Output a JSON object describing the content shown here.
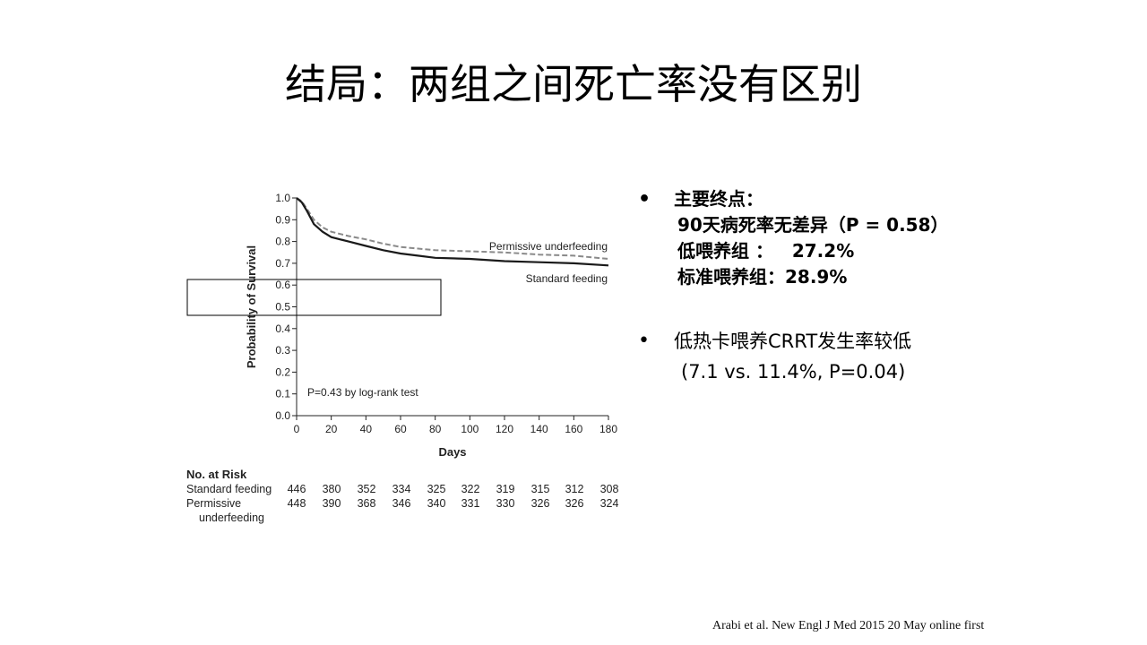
{
  "slide": {
    "title": "结局：两组之间死亡率没有区别",
    "citation": "Arabi et al. New Engl J Med 2015 20 May online first"
  },
  "bullets": [
    {
      "lines": [
        "主要终点：",
        "90天病死率无差异（P = 0.58）",
        "低喂养组 ：   27.2%",
        "标准喂养组：28.9%"
      ],
      "bold": true
    },
    {
      "lines": [
        "低热卡喂养CRRT发生率较低",
        "(7.1 vs. 11.4%, P=0.04)"
      ],
      "bold": false
    }
  ],
  "risk_table": {
    "title": "No. at Risk",
    "rows": [
      {
        "label": "Standard feeding",
        "values": [
          446,
          380,
          352,
          334,
          325,
          322,
          319,
          315,
          312,
          308
        ]
      },
      {
        "label": "Permissive",
        "label2": "underfeeding",
        "values": [
          448,
          390,
          368,
          346,
          340,
          331,
          330,
          326,
          326,
          324
        ]
      }
    ]
  },
  "chart_data": {
    "type": "line",
    "title": "",
    "xlabel": "Days",
    "ylabel": "Probability of Survival",
    "xlim": [
      0,
      180
    ],
    "ylim": [
      0,
      1.0
    ],
    "x_ticks": [
      0,
      20,
      40,
      60,
      80,
      100,
      120,
      140,
      160,
      180
    ],
    "y_ticks": [
      "0.0",
      "0.1",
      "0.2",
      "0.3",
      "0.4",
      "0.5",
      "0.6",
      "0.7",
      "0.8",
      "0.9",
      "1.0"
    ],
    "annotation": "P=0.43 by log-rank test",
    "series": [
      {
        "name": "Permissive underfeeding",
        "style": "dashed",
        "color": "#8a8a8a",
        "points": [
          [
            0,
            1.0
          ],
          [
            3,
            0.985
          ],
          [
            6,
            0.95
          ],
          [
            10,
            0.9
          ],
          [
            15,
            0.865
          ],
          [
            20,
            0.845
          ],
          [
            30,
            0.825
          ],
          [
            40,
            0.81
          ],
          [
            50,
            0.79
          ],
          [
            60,
            0.775
          ],
          [
            80,
            0.76
          ],
          [
            100,
            0.755
          ],
          [
            120,
            0.75
          ],
          [
            140,
            0.74
          ],
          [
            160,
            0.735
          ],
          [
            180,
            0.72
          ]
        ]
      },
      {
        "name": "Standard feeding",
        "style": "solid",
        "color": "#1a1a1a",
        "points": [
          [
            0,
            1.0
          ],
          [
            3,
            0.98
          ],
          [
            6,
            0.94
          ],
          [
            10,
            0.88
          ],
          [
            15,
            0.845
          ],
          [
            20,
            0.82
          ],
          [
            30,
            0.8
          ],
          [
            40,
            0.78
          ],
          [
            50,
            0.76
          ],
          [
            60,
            0.745
          ],
          [
            70,
            0.735
          ],
          [
            80,
            0.725
          ],
          [
            100,
            0.72
          ],
          [
            120,
            0.71
          ],
          [
            140,
            0.705
          ],
          [
            160,
            0.7
          ],
          [
            180,
            0.69
          ]
        ]
      }
    ]
  }
}
